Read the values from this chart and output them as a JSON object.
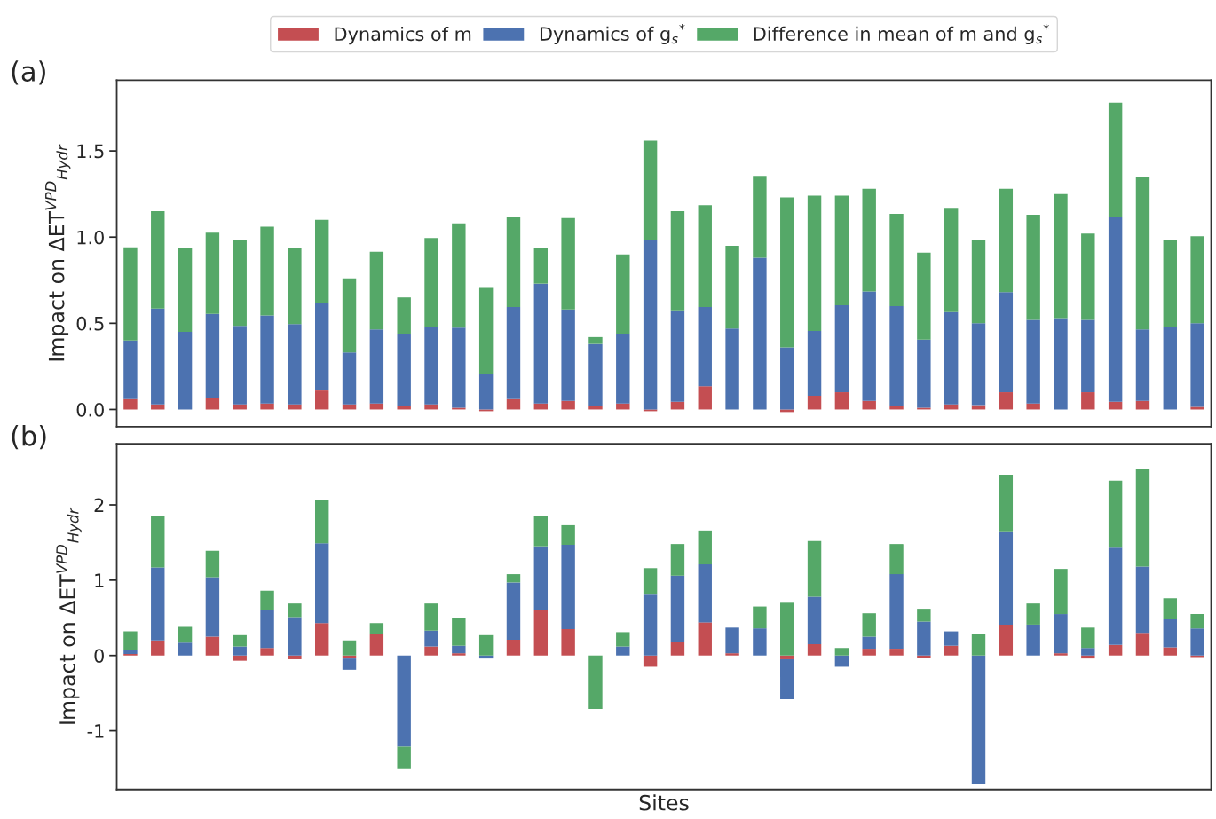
{
  "chart_data": [
    {
      "type": "bar",
      "stacked": true,
      "ylabel": "Impact on ΔET$^{VPD}$$_{Hydr}$",
      "annotations": [
        "(a)"
      ],
      "legend": "top",
      "tick_labels": "y",
      "categories": [
        null,
        null,
        null,
        null,
        null,
        null,
        null,
        null,
        null,
        null,
        null,
        null,
        null,
        null,
        null,
        null,
        null,
        null,
        null,
        null,
        null,
        null,
        null,
        null,
        null,
        null,
        null,
        null,
        null,
        null,
        null,
        null,
        null,
        null,
        null,
        null,
        null,
        null,
        null,
        null
      ],
      "ylim": [
        -0.1,
        1.91
      ],
      "yticks": [
        {
          "value": 0,
          "label": "0.0"
        },
        0.5,
        {
          "value": 1,
          "label": "1.0"
        },
        1.5
      ],
      "series": [
        {
          "name": "Dynamics of m",
          "color": "#c44e52",
          "values": [
            0.06,
            0.03,
            0,
            0.065,
            0.03,
            0.035,
            0.03,
            0.11,
            0.03,
            0.035,
            0.02,
            0.03,
            0.01,
            -0.01,
            0.06,
            0.035,
            0.05,
            0.02,
            0.035,
            -0.01,
            0.045,
            0.135,
            0,
            0,
            -0.015,
            0.08,
            0.1,
            0.05,
            0.02,
            0.01,
            0.03,
            0.025,
            0.1,
            0.035,
            0,
            0.1,
            0.045,
            0.05,
            0,
            0.015
          ]
        },
        {
          "name": "Dynamics of g$_{s}$$^{*}$",
          "color": "#4c72b0",
          "values": [
            0.34,
            0.555,
            0.45,
            0.49,
            0.455,
            0.51,
            0.465,
            0.51,
            0.3,
            0.43,
            0.42,
            0.45,
            0.465,
            0.205,
            0.535,
            0.695,
            0.53,
            0.36,
            0.405,
            0.985,
            0.53,
            0.46,
            0.47,
            0.88,
            0.36,
            0.375,
            0.505,
            0.635,
            0.58,
            0.395,
            0.535,
            0.475,
            0.58,
            0.485,
            0.53,
            0.42,
            1.075,
            0.415,
            0.48,
            0.485
          ]
        },
        {
          "name": "Difference in mean of m and g$_{s}$$^{*}$",
          "color": "#55a868",
          "values": [
            0.54,
            0.565,
            0.485,
            0.47,
            0.495,
            0.515,
            0.44,
            0.48,
            0.43,
            0.45,
            0.21,
            0.515,
            0.605,
            0.5,
            0.525,
            0.205,
            0.53,
            0.04,
            0.46,
            0.575,
            0.575,
            0.59,
            0.48,
            0.475,
            0.87,
            0.785,
            0.635,
            0.595,
            0.535,
            0.505,
            0.605,
            0.485,
            0.6,
            0.61,
            0.72,
            0.5,
            0.66,
            0.885,
            0.505,
            0.505
          ]
        }
      ]
    },
    {
      "type": "bar",
      "stacked": true,
      "ylabel": "Impact on ΔET$^{VPD}$$_{Hydr}$",
      "xlabel": "Sites",
      "annotations": [
        "(b)"
      ],
      "tick_labels": "y",
      "categories": [
        null,
        null,
        null,
        null,
        null,
        null,
        null,
        null,
        null,
        null,
        null,
        null,
        null,
        null,
        null,
        null,
        null,
        null,
        null,
        null,
        null,
        null,
        null,
        null,
        null,
        null,
        null,
        null,
        null,
        null,
        null,
        null,
        null,
        null,
        null,
        null,
        null,
        null,
        null,
        null
      ],
      "ylim": [
        -1.78,
        2.81
      ],
      "yticks": [
        -1,
        0,
        1,
        2
      ],
      "series": [
        {
          "color": "#c44e52",
          "values": [
            0.02,
            0.2,
            0,
            0.25,
            -0.07,
            0.1,
            -0.05,
            0.43,
            -0.04,
            0.29,
            0,
            0.12,
            0.03,
            0,
            0.21,
            0.6,
            0.35,
            0,
            0,
            -0.15,
            0.18,
            0.44,
            0.03,
            0,
            -0.05,
            0.15,
            0,
            0.09,
            0.09,
            -0.03,
            0.13,
            0,
            0.41,
            0,
            0.03,
            -0.04,
            0.14,
            0.3,
            0.11,
            -0.02
          ]
        },
        {
          "color": "#4c72b0",
          "values": [
            0.05,
            0.97,
            0.17,
            0.79,
            0.12,
            0.5,
            0.51,
            1.06,
            -0.15,
            0,
            -1.21,
            0.21,
            0.1,
            -0.04,
            0.76,
            0.85,
            1.12,
            0,
            0.12,
            0.82,
            0.88,
            0.77,
            0.34,
            0.36,
            -0.53,
            0.63,
            -0.15,
            0.16,
            0.99,
            0.45,
            0.19,
            -1.71,
            1.24,
            0.41,
            0.52,
            0.1,
            1.29,
            0.88,
            0.37,
            0.36
          ]
        },
        {
          "color": "#55a868",
          "values": [
            0.25,
            0.68,
            0.21,
            0.35,
            0.15,
            0.26,
            0.18,
            0.57,
            0.2,
            0.14,
            -0.3,
            0.36,
            0.37,
            0.27,
            0.11,
            0.4,
            0.26,
            -0.71,
            0.19,
            0.34,
            0.42,
            0.45,
            0,
            0.29,
            0.7,
            0.74,
            0.1,
            0.31,
            0.4,
            0.17,
            0,
            0.29,
            0.75,
            0.28,
            0.6,
            0.27,
            0.89,
            1.29,
            0.28,
            0.19
          ]
        }
      ]
    }
  ]
}
